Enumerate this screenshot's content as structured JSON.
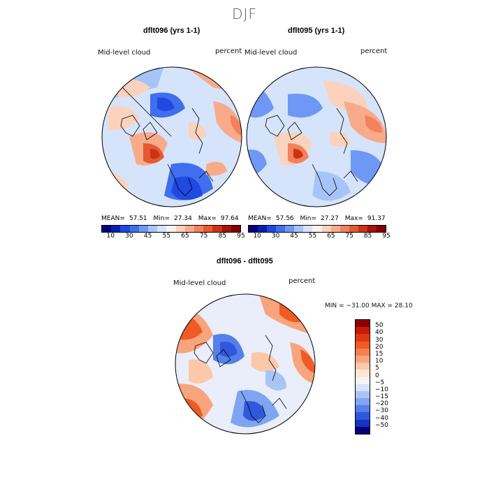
{
  "title": "DJF",
  "panels": [
    {
      "title": "dflt096 (yrs 1-1)",
      "variable": "Mid-level cloud",
      "units": "percent",
      "mean_label": "MEAN=",
      "mean": "57.51",
      "min_label": "Min=",
      "min": "27.34",
      "max_label": "Max=",
      "max": "97.64"
    },
    {
      "title": "dflt095 (yrs 1-1)",
      "variable": "Mid-level cloud",
      "units": "percent",
      "mean_label": "MEAN=",
      "mean": "57.56",
      "min_label": "Min=",
      "min": "27.27",
      "max_label": "Max=",
      "max": "91.37"
    }
  ],
  "diff": {
    "title": "dflt096 - dflt095",
    "variable": "Mid-level cloud",
    "units": "percent",
    "minmax": "MIN = −31.00 MAX =  28.10"
  },
  "abs_colorbar": {
    "labels": [
      "10",
      "30",
      "45",
      "55",
      "65",
      "75",
      "85",
      "95"
    ],
    "colors": [
      "#000080",
      "#0a1fb0",
      "#1f49e0",
      "#3f6fee",
      "#6f97f5",
      "#a7c4fa",
      "#d6e4fb",
      "#f8f3ee",
      "#fbd2bc",
      "#f8ab8a",
      "#f2825c",
      "#e55a33",
      "#cd3216",
      "#a81008",
      "#800000"
    ]
  },
  "diff_colorbar": {
    "labels": [
      "50",
      "40",
      "30",
      "20",
      "15",
      "10",
      "5",
      "0",
      "−5",
      "−10",
      "−15",
      "−20",
      "−30",
      "−40",
      "−50"
    ],
    "colors": [
      "#8b0000",
      "#c41a06",
      "#e03a12",
      "#f05a24",
      "#f57f4e",
      "#f8a47c",
      "#fbc8aa",
      "#fbe6d8",
      "#f4f4f4",
      "#d6e3fb",
      "#a9c4f7",
      "#7ea4f2",
      "#5580ea",
      "#2f58dc",
      "#1534bf",
      "#00007a"
    ]
  },
  "legend_colors": {
    "land_outline": "#000000",
    "positive": "#e8522a",
    "negative": "#3b6ae8"
  }
}
